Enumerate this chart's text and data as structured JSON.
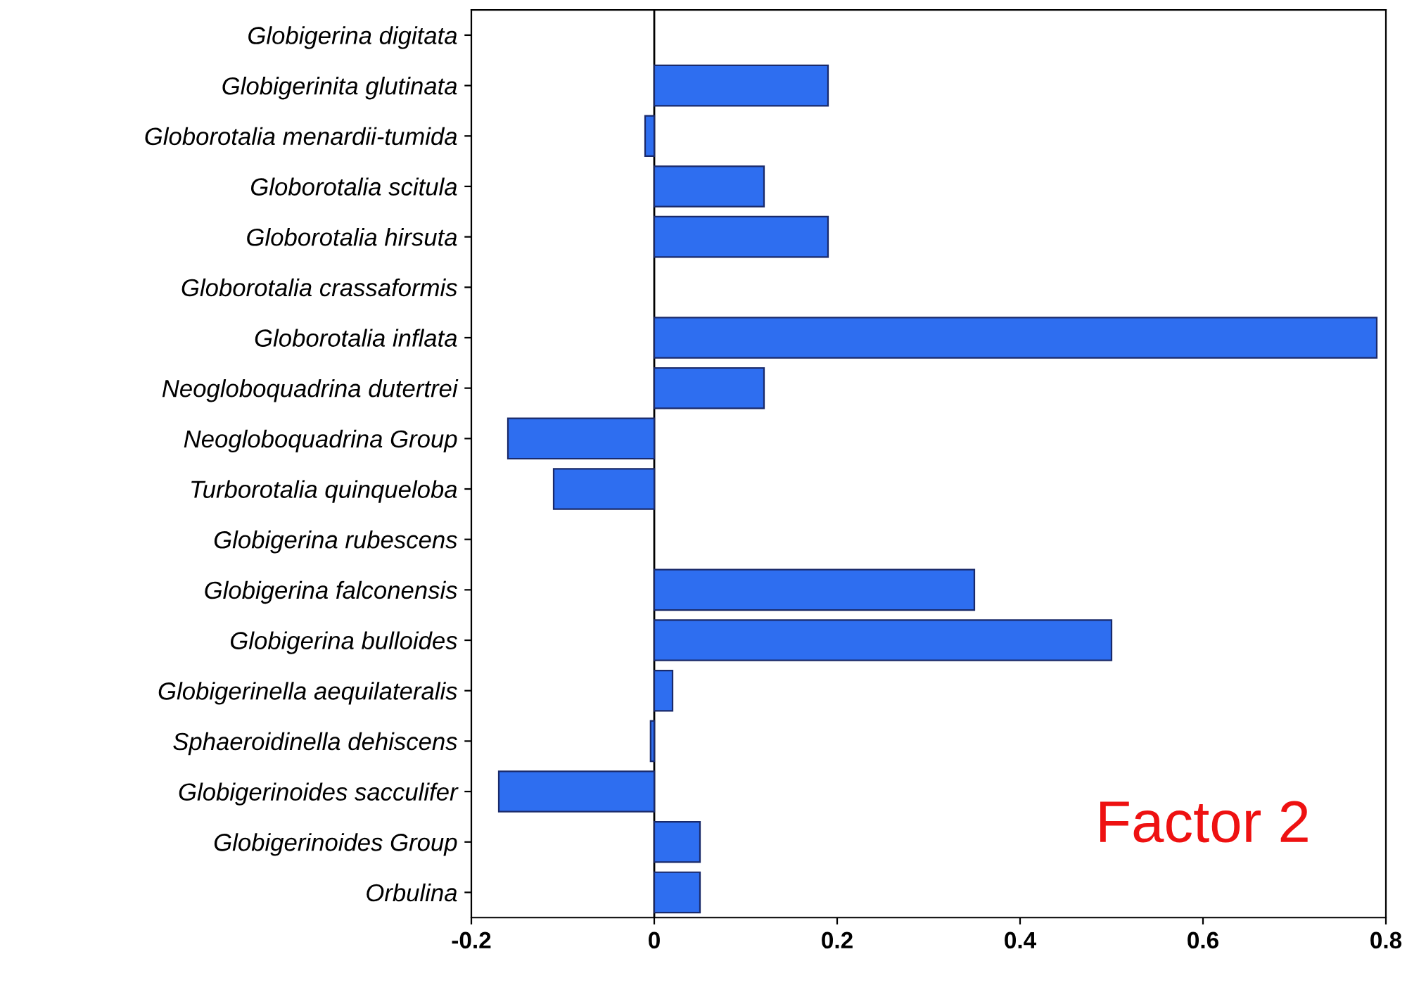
{
  "chart_data": {
    "type": "bar",
    "orientation": "horizontal",
    "categories": [
      "Globigerina digitata",
      "Globigerinita glutinata",
      "Globorotalia menardii-tumida",
      "Globorotalia scitula",
      "Globorotalia hirsuta",
      "Globorotalia crassaformis",
      "Globorotalia inflata",
      "Neogloboquadrina dutertrei",
      "Neogloboquadrina Group",
      "Turborotalia quinqueloba",
      "Globigerina rubescens",
      "Globigerina falconensis",
      "Globigerina bulloides",
      "Globigerinella aequilateralis",
      "Sphaeroidinella dehiscens",
      "Globigerinoides sacculifer",
      "Globigerinoides Group",
      "Orbulina"
    ],
    "values": [
      null,
      0.19,
      -0.01,
      0.12,
      0.19,
      null,
      0.79,
      0.12,
      -0.16,
      -0.11,
      null,
      0.35,
      0.5,
      0.02,
      -0.004,
      -0.17,
      0.05,
      0.05
    ],
    "color": "#2e6ef0",
    "xlim": [
      -0.2,
      0.8
    ],
    "xticks": [
      -0.2,
      0,
      0.2,
      0.4,
      0.6,
      0.8
    ],
    "ref_lines": [
      {
        "axis": "x",
        "value": 0,
        "color": "#000000"
      }
    ],
    "annotations": [
      "Factor 2"
    ],
    "grid": false
  }
}
